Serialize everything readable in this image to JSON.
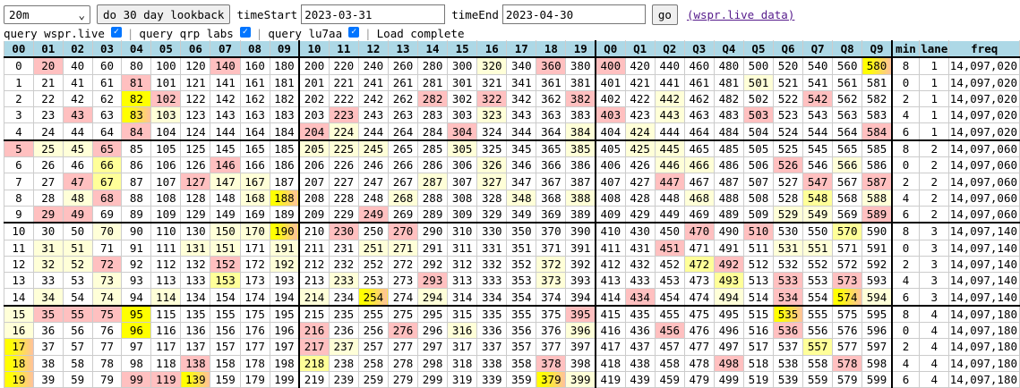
{
  "controls": {
    "band": "20m",
    "lookback_label": "do 30 day lookback",
    "time_start_label": "timeStart",
    "time_start": "2023-03-31",
    "time_end_label": "timeEnd",
    "time_end": "2023-04-30",
    "go_label": "go",
    "link_label": "(wspr.live data)",
    "query_wspr_label": "query wspr.live",
    "query_qrp_label": "query qrp labs",
    "query_lu7aa_label": "query lu7aa",
    "separator": "|",
    "status": "Load complete",
    "checked_icon": "✓"
  },
  "highlight_colors": {
    "p": "#ffc0c0",
    "y": "#ffffd8",
    "m": "#ffff99",
    "Y": "#ffff00",
    "g": "yellow-to-pink gradient"
  },
  "table": {
    "headers": [
      "00",
      "01",
      "02",
      "03",
      "04",
      "05",
      "06",
      "07",
      "08",
      "09",
      "10",
      "11",
      "12",
      "13",
      "14",
      "15",
      "16",
      "17",
      "18",
      "19",
      "Q0",
      "Q1",
      "Q2",
      "Q3",
      "Q4",
      "Q5",
      "Q6",
      "Q7",
      "Q8",
      "Q9",
      "min",
      "lane",
      "freq"
    ],
    "rows": [
      {
        "hl": ".p.....p........y.p.p........g",
        "min": "8",
        "lane": "1",
        "freq": "14,097,020"
      },
      {
        "hl": "....p....................y....",
        "min": "0",
        "lane": "1",
        "freq": "14,097,020"
      },
      {
        "hl": "....Yp........p.p..p..y....p..",
        "min": "2",
        "lane": "1",
        "freq": "14,097,020"
      },
      {
        "hl": "..p.gy.....p....y...p.y..p....",
        "min": "4",
        "lane": "1",
        "freq": "14,097,020"
      },
      {
        "hl": "....p.....py...p...y.y.......p",
        "min": "6",
        "lane": "1",
        "freq": "14,097,020"
      },
      {
        "hl": "pyyp......yyy..y...y.yy.......",
        "min": "8",
        "lane": "2",
        "freq": "14,097,060"
      },
      {
        "hl": "...m...p........y.....yy..p.y.",
        "min": "0",
        "lane": "2",
        "freq": "14,097,060"
      },
      {
        "hl": "..pm..pyy.....y.y.....p....p.p",
        "min": "2",
        "lane": "2",
        "freq": "14,097,060"
      },
      {
        "hl": "..yp....yg...y...y.y...y...m.y",
        "min": "4",
        "lane": "2",
        "freq": "14,097,060"
      },
      {
        "hl": ".pp.........p.............yy.p",
        "min": "6",
        "lane": "2",
        "freq": "14,097,060"
      },
      {
        "hl": "...y...yyg.p.p.........p.p..m.",
        "min": "8",
        "lane": "3",
        "freq": "14,097,140"
      },
      {
        "hl": ".yy...yy.y..yy........p...yy..",
        "min": "0",
        "lane": "3",
        "freq": "14,097,140"
      },
      {
        "hl": ".yyp...p.y........y....mp.....",
        "min": "2",
        "lane": "3",
        "freq": "14,097,140"
      },
      {
        "hl": "...y...m...y..p...y.....m.p.p.",
        "min": "4",
        "lane": "3",
        "freq": "14,097,140"
      },
      {
        "hl": ".y.y.y....y.g.y......p..y.p.gy",
        "min": "6",
        "lane": "3",
        "freq": "14,097,140"
      },
      {
        "hl": "ypppY..............p......g...",
        "min": "8",
        "lane": "4",
        "freq": "14,097,180"
      },
      {
        "hl": "y...Y.....p..p.y...y..p...p...",
        "min": "0",
        "lane": "4",
        "freq": "14,097,180"
      },
      {
        "hl": "g.........py...............m..",
        "min": "2",
        "lane": "4",
        "freq": "14,097,180"
      },
      {
        "hl": "g.....p...m.......p.....p...p.",
        "min": "4",
        "lane": "4",
        "freq": "14,097,180"
      },
      {
        "hl": "g...ppg...........gy..........",
        "min": "6",
        "lane": "4",
        "freq": "14,097,180"
      }
    ]
  }
}
